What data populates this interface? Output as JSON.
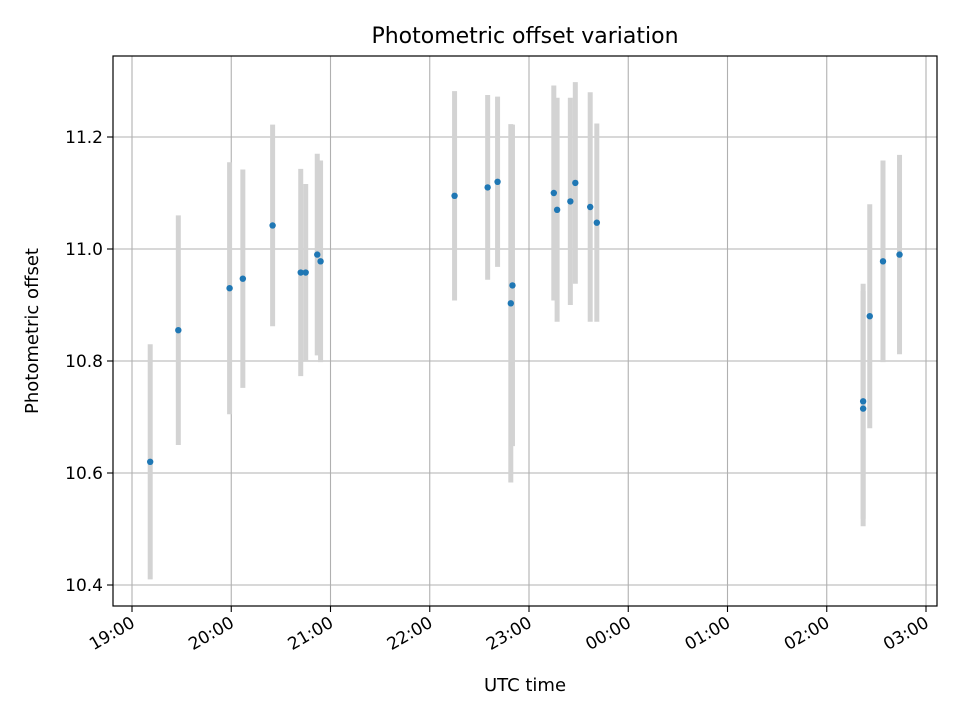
{
  "chart_data": {
    "type": "scatter",
    "title": "Photometric offset variation",
    "xlabel": "UTC time",
    "ylabel": "Photometric offset",
    "x_is_time": true,
    "xlim": [
      "19:00",
      "03:00"
    ],
    "ylim": [
      10.4,
      11.3
    ],
    "x_ticks": [
      "19:00",
      "20:00",
      "21:00",
      "22:00",
      "23:00",
      "00:00",
      "01:00",
      "02:00",
      "03:00"
    ],
    "y_ticks": [
      "10.4",
      "10.6",
      "10.8",
      "11.0",
      "11.2"
    ],
    "grid": true,
    "marker_color": "#1f77b4",
    "errorbar_color": "#d3d3d3",
    "points": [
      {
        "time": "19:11",
        "y": 10.62,
        "yerr": 0.21
      },
      {
        "time": "19:28",
        "y": 10.855,
        "yerr": 0.205
      },
      {
        "time": "19:59",
        "y": 10.93,
        "yerr": 0.225
      },
      {
        "time": "20:07",
        "y": 10.947,
        "yerr": 0.195
      },
      {
        "time": "20:25",
        "y": 11.042,
        "yerr": 0.18
      },
      {
        "time": "20:42",
        "y": 10.958,
        "yerr": 0.185
      },
      {
        "time": "20:45",
        "y": 10.958,
        "yerr": 0.158
      },
      {
        "time": "20:52",
        "y": 10.99,
        "yerr": 0.18
      },
      {
        "time": "20:54",
        "y": 10.978,
        "yerr": 0.18
      },
      {
        "time": "22:15",
        "y": 11.095,
        "yerr": 0.187
      },
      {
        "time": "22:35",
        "y": 11.11,
        "yerr": 0.165
      },
      {
        "time": "22:41",
        "y": 11.12,
        "yerr": 0.152
      },
      {
        "time": "22:49",
        "y": 10.903,
        "yerr": 0.32
      },
      {
        "time": "22:50",
        "y": 10.935,
        "yerr": 0.287
      },
      {
        "time": "23:15",
        "y": 11.1,
        "yerr": 0.192
      },
      {
        "time": "23:17",
        "y": 11.07,
        "yerr": 0.2
      },
      {
        "time": "23:25",
        "y": 11.085,
        "yerr": 0.185
      },
      {
        "time": "23:28",
        "y": 11.118,
        "yerr": 0.18
      },
      {
        "time": "23:37",
        "y": 11.075,
        "yerr": 0.205
      },
      {
        "time": "23:41",
        "y": 11.047,
        "yerr": 0.177
      },
      {
        "time": "02:22",
        "y": 10.728,
        "yerr": 0.21
      },
      {
        "time": "02:22",
        "y": 10.715,
        "yerr": 0.21
      },
      {
        "time": "02:26",
        "y": 10.88,
        "yerr": 0.2
      },
      {
        "time": "02:34",
        "y": 10.978,
        "yerr": 0.18
      },
      {
        "time": "02:44",
        "y": 10.99,
        "yerr": 0.178
      }
    ]
  }
}
